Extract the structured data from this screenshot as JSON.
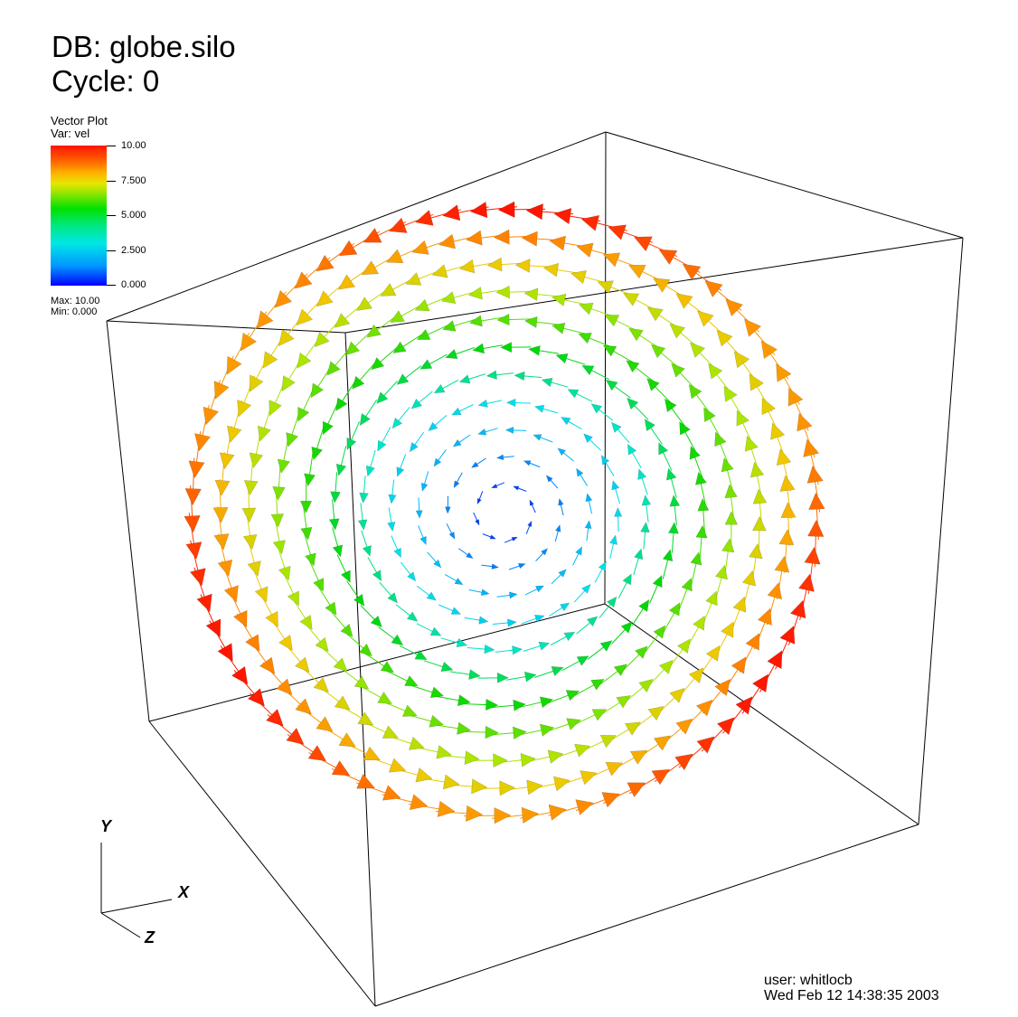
{
  "header": {
    "db": "DB: globe.silo",
    "cycle": "Cycle: 0"
  },
  "legend": {
    "plot_label": "Vector Plot",
    "var_label": "Var:  vel",
    "ticks": [
      "10.00",
      "7.500",
      "5.000",
      "2.500",
      "0.000"
    ],
    "max": "Max:  10.00",
    "min": "Min:  0.000",
    "colormap": [
      "#0000ff",
      "#00e6e6",
      "#00e100",
      "#e6e600",
      "#ff1500"
    ]
  },
  "triad": {
    "x": "X",
    "y": "Y",
    "z": "Z"
  },
  "footer": {
    "user": "user: whitlocb",
    "date": "Wed Feb 12 14:38:35 2003"
  },
  "vector_data": {
    "variable": "vel",
    "min": 0.0,
    "max": 10.0
  }
}
